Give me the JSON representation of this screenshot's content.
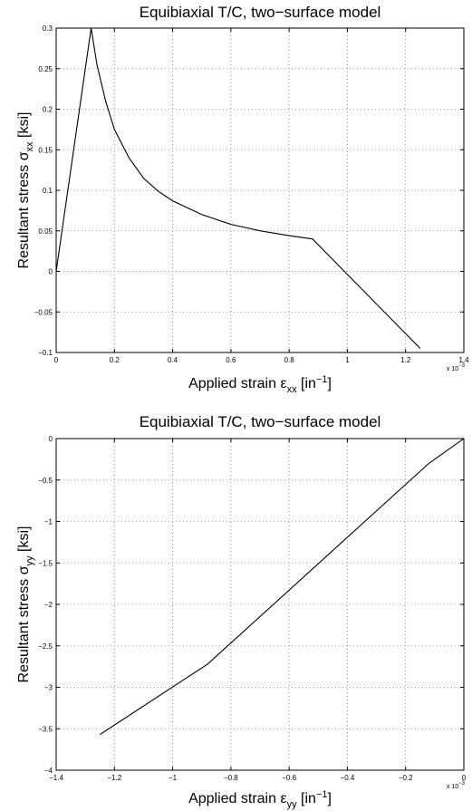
{
  "chart_data": [
    {
      "type": "line",
      "title": "Equibiaxial T/C, two−surface model",
      "xlabel": {
        "base": "Applied strain ε",
        "sub": "xx",
        "tail": " [in",
        "sup": "−1",
        "close": "]"
      },
      "ylabel": {
        "base": "Resultant stress σ",
        "sub": "xx",
        "tail": " [ksi]"
      },
      "x_multiplier": {
        "base": "x 10",
        "sup": "−3"
      },
      "xlim": [
        0,
        1.4
      ],
      "ylim": [
        -0.1,
        0.3
      ],
      "xticks": [
        "0",
        "0.2",
        "0.4",
        "0.6",
        "0.8",
        "1",
        "1.2",
        "1.4"
      ],
      "yticks": [
        "−0.1",
        "−0.05",
        "0",
        "0.05",
        "0.1",
        "0.15",
        "0.2",
        "0.25",
        "0.3"
      ],
      "grid": true,
      "series": [
        {
          "x": [
            0,
            0.12,
            0.14,
            0.17,
            0.2,
            0.25,
            0.3,
            0.35,
            0.4,
            0.5,
            0.6,
            0.7,
            0.8,
            0.88,
            1.25
          ],
          "y": [
            0,
            0.3,
            0.255,
            0.21,
            0.175,
            0.14,
            0.115,
            0.099,
            0.087,
            0.07,
            0.058,
            0.05,
            0.044,
            0.04,
            -0.095
          ]
        }
      ]
    },
    {
      "type": "line",
      "title": "Equibiaxial T/C, two−surface model",
      "xlabel": {
        "base": "Applied strain ε",
        "sub": "yy",
        "tail": " [in",
        "sup": "−1",
        "close": "]"
      },
      "ylabel": {
        "base": "Resultant stress σ",
        "sub": "yy",
        "tail": " [ksi]"
      },
      "x_multiplier": {
        "base": "x 10",
        "sup": "−3"
      },
      "xlim": [
        -1.4,
        0
      ],
      "ylim": [
        -4,
        0
      ],
      "xticks": [
        "−1.4",
        "−1.2",
        "−1",
        "−0.8",
        "−0.6",
        "−0.4",
        "−0.2",
        "0"
      ],
      "yticks": [
        "−4",
        "−3.5",
        "−3",
        "−2.5",
        "−2",
        "−1.5",
        "−1",
        "−0.5",
        "0"
      ],
      "grid": true,
      "series": [
        {
          "x": [
            0,
            -0.12,
            -0.88,
            -1.25
          ],
          "y": [
            0,
            -0.3,
            -2.72,
            -3.57
          ]
        }
      ]
    }
  ]
}
